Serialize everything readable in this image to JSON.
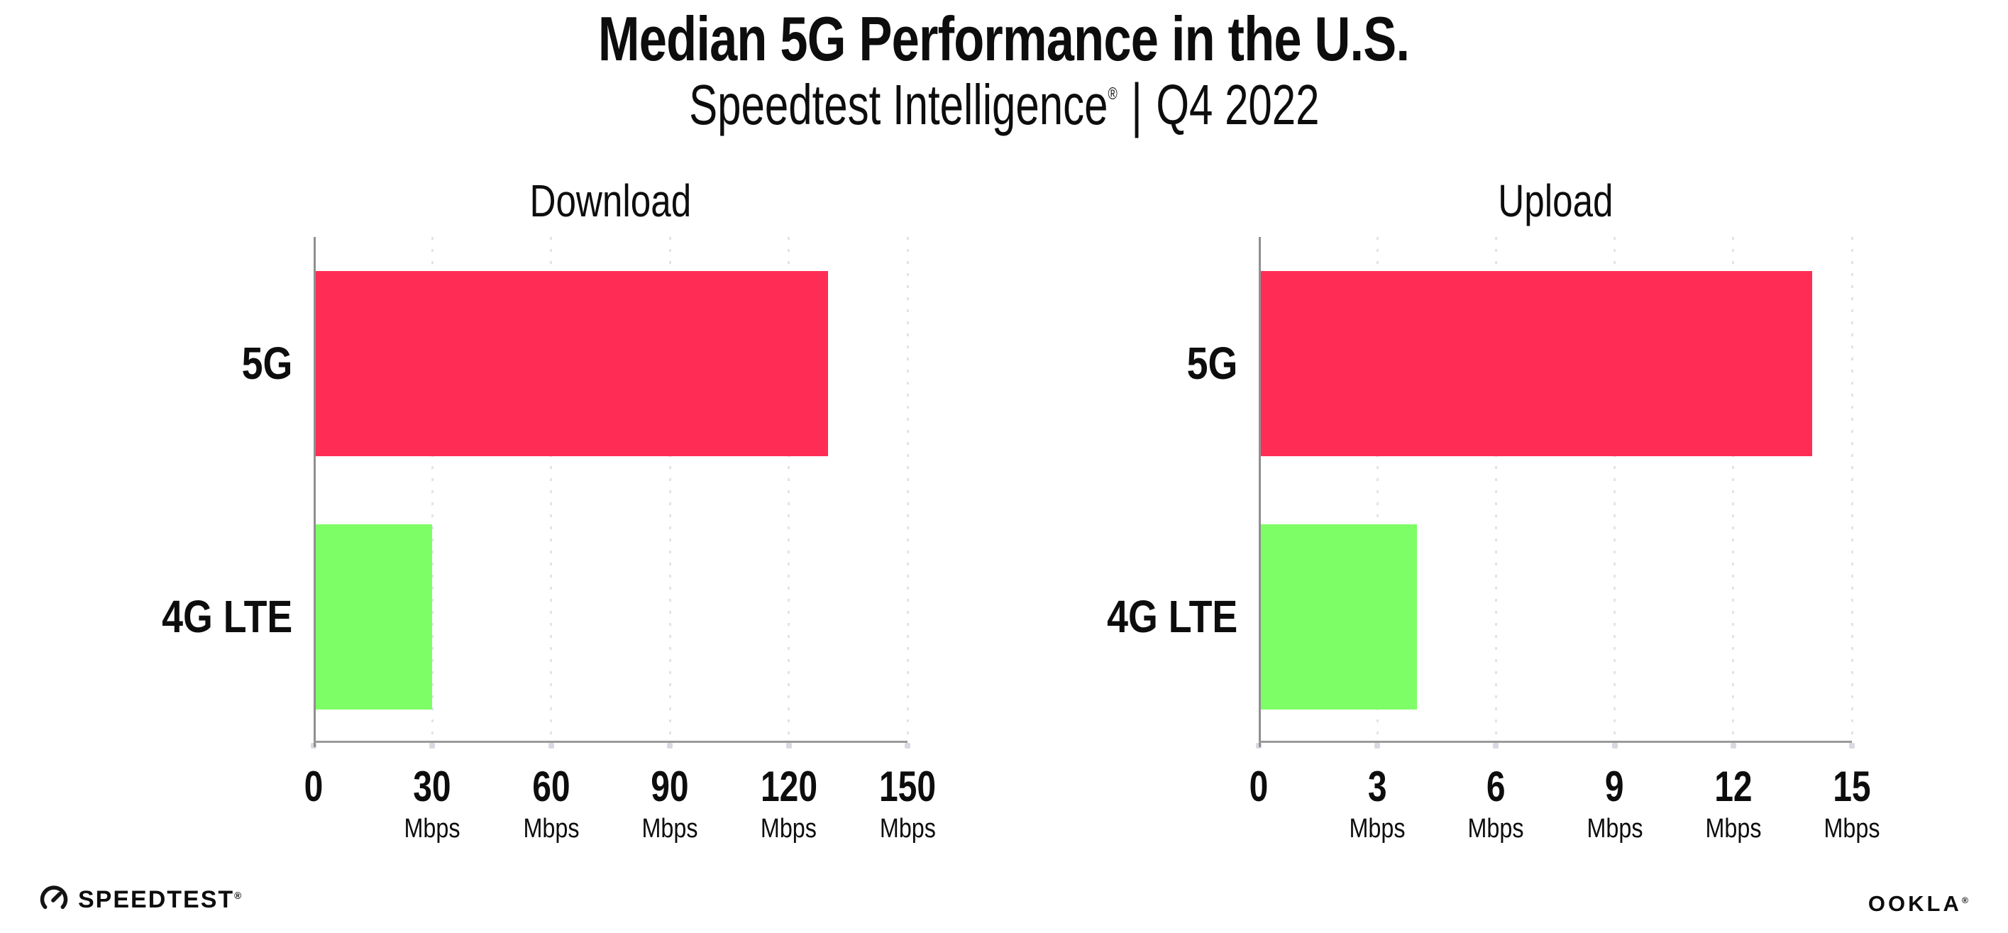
{
  "header": {
    "title": "Median 5G Performance in the U.S.",
    "subtitle_brand": "Speedtest Intelligence",
    "subtitle_reg": "®",
    "subtitle_sep": "|",
    "subtitle_period": "Q4 2022"
  },
  "footer": {
    "speedtest_label": "SPEEDTEST",
    "speedtest_reg": "®",
    "ookla_label": "OOKLA",
    "ookla_reg": "®"
  },
  "colors": {
    "bar_5g": "#ff2d55",
    "bar_4g_lte": "#7dfe66",
    "axis": "#9a9a9a",
    "gridline": "#e2e2ec",
    "text": "#0d0d0d",
    "background": "#ffffff"
  },
  "chart_data": [
    {
      "type": "bar",
      "orientation": "horizontal",
      "title": "Download",
      "categories": [
        "5G",
        "4G LTE"
      ],
      "values": [
        130,
        30
      ],
      "unit": "Mbps",
      "xlabel": "",
      "ylabel": "",
      "xlim": [
        0,
        150
      ],
      "xticks": [
        0,
        30,
        60,
        90,
        120,
        150
      ],
      "bar_colors": [
        "#ff2d55",
        "#7dfe66"
      ],
      "grid": "vertical-dotted",
      "legend_position": "none"
    },
    {
      "type": "bar",
      "orientation": "horizontal",
      "title": "Upload",
      "categories": [
        "5G",
        "4G LTE"
      ],
      "values": [
        14,
        4
      ],
      "unit": "Mbps",
      "xlabel": "",
      "ylabel": "",
      "xlim": [
        0,
        15
      ],
      "xticks": [
        0,
        3,
        6,
        9,
        12,
        15
      ],
      "bar_colors": [
        "#ff2d55",
        "#7dfe66"
      ],
      "grid": "vertical-dotted",
      "legend_position": "none"
    }
  ]
}
